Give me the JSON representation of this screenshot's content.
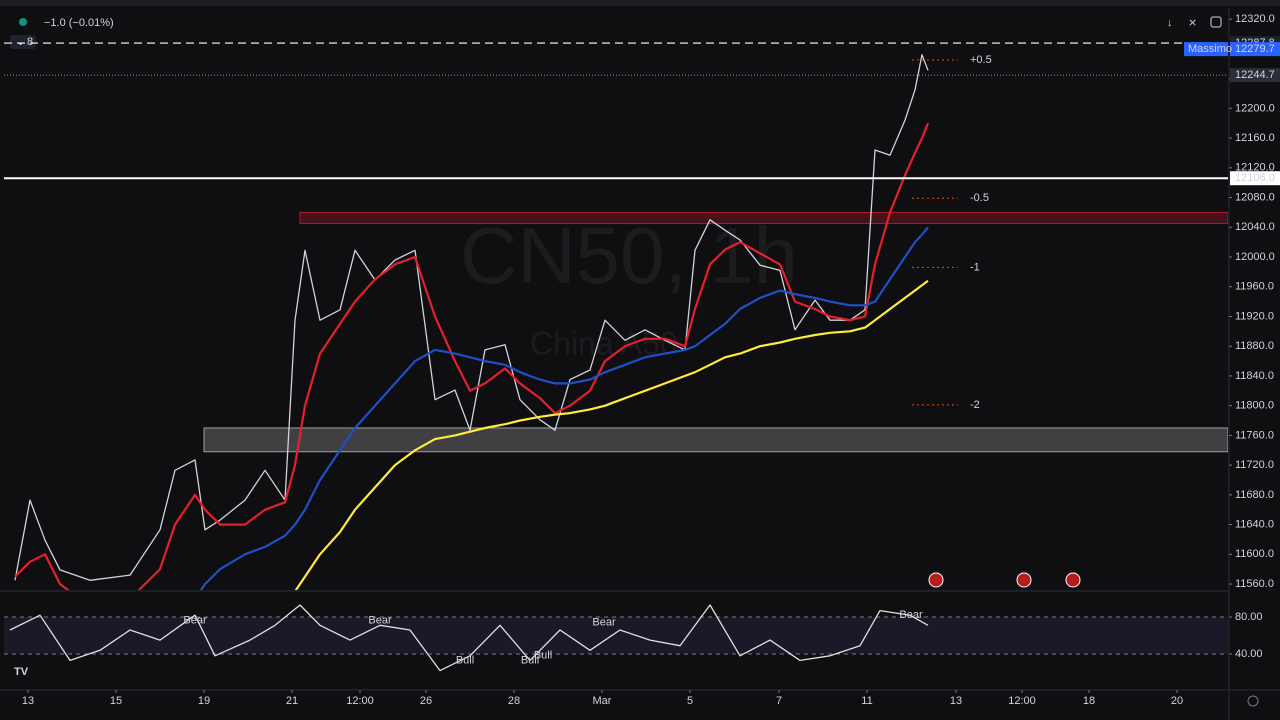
{
  "header": {
    "change": "−1.0 (−0.01%)",
    "collapsed_count": "8"
  },
  "chart_data": [
    {
      "type": "line",
      "title": "CN50, 1h",
      "subtitle": "China A50",
      "xlim": [
        0,
        306
      ],
      "ylim": [
        11552,
        12335
      ],
      "grid": false,
      "xticks": [
        {
          "value": 6,
          "label": "13"
        },
        {
          "value": 28,
          "label": "15"
        },
        {
          "value": 50,
          "label": "19"
        },
        {
          "value": 72,
          "label": "21"
        },
        {
          "value": 89,
          "label": "12:00"
        },
        {
          "value": 105.5,
          "label": "26"
        },
        {
          "value": 127.5,
          "label": "28"
        },
        {
          "value": 149.5,
          "label": "Mar"
        },
        {
          "value": 171.5,
          "label": "5"
        },
        {
          "value": 193.75,
          "label": "7"
        },
        {
          "value": 215.75,
          "label": "11"
        },
        {
          "value": 238,
          "label": "13"
        },
        {
          "value": 254.5,
          "label": "12:00"
        },
        {
          "value": 271.25,
          "label": "18"
        },
        {
          "value": 293.25,
          "label": "20"
        }
      ],
      "yticks": [
        {
          "value": 12320,
          "label": "12320.0"
        },
        {
          "value": 12280,
          "label": "12280.0"
        },
        {
          "value": 12240,
          "label": "12240.0"
        },
        {
          "value": 12200,
          "label": "12200.0"
        },
        {
          "value": 12160,
          "label": "12160.0"
        },
        {
          "value": 12120,
          "label": "12120.0"
        },
        {
          "value": 12080,
          "label": "12080.0"
        },
        {
          "value": 12040,
          "label": "12040.0"
        },
        {
          "value": 12000,
          "label": "12000.0"
        },
        {
          "value": 11960,
          "label": "11960.0"
        },
        {
          "value": 11920,
          "label": "11920.0"
        },
        {
          "value": 11880,
          "label": "11880.0"
        },
        {
          "value": 11840,
          "label": "11840.0"
        },
        {
          "value": 11800,
          "label": "11800.0"
        },
        {
          "value": 11760,
          "label": "11760.0"
        },
        {
          "value": 11720,
          "label": "11720.0"
        },
        {
          "value": 11680,
          "label": "11680.0"
        },
        {
          "value": 11640,
          "label": "11640.0"
        },
        {
          "value": 11600,
          "label": "11600.0"
        },
        {
          "value": 11560,
          "label": "11560.0"
        }
      ],
      "x": [
        2.75,
        6.5,
        10.25,
        14,
        21.5,
        31.5,
        39,
        42.75,
        47.75,
        50.25,
        54,
        60.25,
        65.25,
        70.25,
        72.75,
        75.25,
        79,
        84,
        87.75,
        92.75,
        97.75,
        102.75,
        107.75,
        112.75,
        116.5,
        120.25,
        125.25,
        129,
        134,
        137.75,
        141.5,
        146.5,
        150.25,
        155.25,
        160.25,
        165.25,
        170.25,
        172.75,
        176.5,
        180.25,
        184,
        189,
        194,
        197.75,
        202.75,
        206.5,
        211.5,
        215.25,
        217.75,
        221.5,
        225.25,
        227.75,
        229.5,
        231
      ],
      "series": [
        {
          "color": "#d1d4dc",
          "width": 1.3,
          "values": [
            11565,
            11673,
            11619,
            11579,
            11565,
            11572,
            11633,
            11713,
            11727,
            11633,
            11646,
            11673,
            11713,
            11673,
            11915,
            12009,
            11915,
            11929,
            12009,
            11969,
            11996,
            12009,
            11808,
            11821,
            11767,
            11875,
            11882,
            11808,
            11781,
            11767,
            11835,
            11848,
            11915,
            11888,
            11902,
            11888,
            11875,
            12009,
            12050,
            12036,
            12023,
            11989,
            11982,
            11902,
            11942,
            11915,
            11915,
            11929,
            12144,
            12137,
            12184,
            12225,
            12272,
            12251
          ]
        },
        {
          "color": "#e5202e",
          "width": 2.2,
          "values": [
            11570,
            11590,
            11600,
            11560,
            11530,
            11540,
            11580,
            11640,
            11680,
            11660,
            11640,
            11640,
            11660,
            11670,
            11720,
            11800,
            11870,
            11910,
            11940,
            11970,
            11990,
            12000,
            11920,
            11860,
            11820,
            11830,
            11850,
            11830,
            11810,
            11790,
            11800,
            11820,
            11860,
            11880,
            11890,
            11890,
            11880,
            11930,
            11990,
            12010,
            12020,
            12005,
            11990,
            11940,
            11930,
            11920,
            11915,
            11920,
            11990,
            12060,
            12110,
            12140,
            12160,
            12180
          ]
        },
        {
          "color": "#1e50c8",
          "width": 2.2,
          "values": [
            null,
            null,
            null,
            null,
            null,
            null,
            null,
            null,
            11540,
            11560,
            11580,
            11600,
            11610,
            11625,
            11640,
            11660,
            11700,
            11740,
            11770,
            11800,
            11830,
            11860,
            11875,
            11870,
            11865,
            11860,
            11855,
            11845,
            11835,
            11830,
            11830,
            11835,
            11845,
            11855,
            11865,
            11870,
            11875,
            11880,
            11895,
            11910,
            11930,
            11945,
            11955,
            11950,
            11945,
            11940,
            11935,
            11935,
            11940,
            11970,
            12000,
            12020,
            12030,
            12040
          ]
        },
        {
          "color": "#ffeb3b",
          "width": 2.2,
          "values": [
            null,
            null,
            null,
            null,
            null,
            null,
            null,
            null,
            null,
            null,
            null,
            null,
            null,
            null,
            11550,
            11570,
            11600,
            11630,
            11660,
            11690,
            11720,
            11740,
            11755,
            11760,
            11765,
            11770,
            11775,
            11780,
            11785,
            11788,
            11790,
            11795,
            11800,
            11810,
            11820,
            11830,
            11840,
            11845,
            11855,
            11865,
            11870,
            11880,
            11885,
            11890,
            11895,
            11898,
            11900,
            11905,
            11915,
            11930,
            11945,
            11955,
            11962,
            11968
          ]
        }
      ],
      "zones": [
        {
          "x0": 74,
          "from": 12045,
          "to": 12060,
          "color": "#b2182b"
        },
        {
          "x0": 50,
          "from": 11738,
          "to": 11770,
          "color": "#9e9e9e"
        }
      ],
      "levels": [
        {
          "value": 12287.8,
          "label": "12287.8",
          "style": "dashed",
          "color": "#ffffff",
          "label_bg": "#1e222d"
        },
        {
          "value": 12279.7,
          "label": "12279.7",
          "tag": "Massimo",
          "style": "none",
          "color": "#2962ff",
          "label_bg": "#2962ff"
        },
        {
          "value": 12244.7,
          "label": "12244.7",
          "style": "dotted",
          "color": "#787b86",
          "label_bg": "#2a2e39"
        },
        {
          "value": 12106,
          "label": "12106.0",
          "style": "solid",
          "color": "#ffffff",
          "label_bg": "#ffffff"
        }
      ],
      "fib_levels": [
        {
          "label": "+0.5",
          "value": 12265
        },
        {
          "label": "-0.5",
          "value": 12079
        },
        {
          "label": "-1",
          "value": 11986
        },
        {
          "label": "-2",
          "value": 11801
        }
      ],
      "fib_color": "#e65100"
    },
    {
      "type": "line",
      "xlim": [
        0,
        306
      ],
      "ylim": [
        1,
        106
      ],
      "yticks": [
        {
          "value": 80,
          "label": "80.00"
        },
        {
          "value": 40,
          "label": "40.00"
        }
      ],
      "x": [
        1.5,
        9,
        16.5,
        24,
        31.5,
        39,
        47.75,
        52.75,
        61.5,
        67.75,
        74,
        79,
        86.5,
        94,
        101.5,
        109,
        116.5,
        124,
        131.5,
        139,
        146.5,
        154,
        161.5,
        169,
        176.5,
        184,
        191.5,
        199,
        206.5,
        214,
        219,
        226.5,
        231
      ],
      "series": [
        {
          "color": "#e0e0e0",
          "width": 1.3,
          "values": [
            66,
            82,
            33,
            44,
            66,
            55,
            82,
            38,
            55,
            71,
            93,
            71,
            55,
            71,
            66,
            22,
            38,
            71,
            33,
            66,
            44,
            66,
            55,
            49,
            93,
            38,
            55,
            33,
            38,
            49,
            87,
            82,
            71
          ]
        }
      ],
      "annotations": [
        {
          "text": "Bear",
          "x": 47.75,
          "y": 76
        },
        {
          "text": "Bear",
          "x": 94,
          "y": 76
        },
        {
          "text": "Bear",
          "x": 150,
          "y": 74
        },
        {
          "text": "Bear",
          "x": 226.75,
          "y": 82
        },
        {
          "text": "Bull",
          "x": 115.25,
          "y": 33
        },
        {
          "text": "Bull",
          "x": 131.5,
          "y": 33
        },
        {
          "text": "Bull",
          "x": 134.75,
          "y": 38
        }
      ]
    }
  ]
}
